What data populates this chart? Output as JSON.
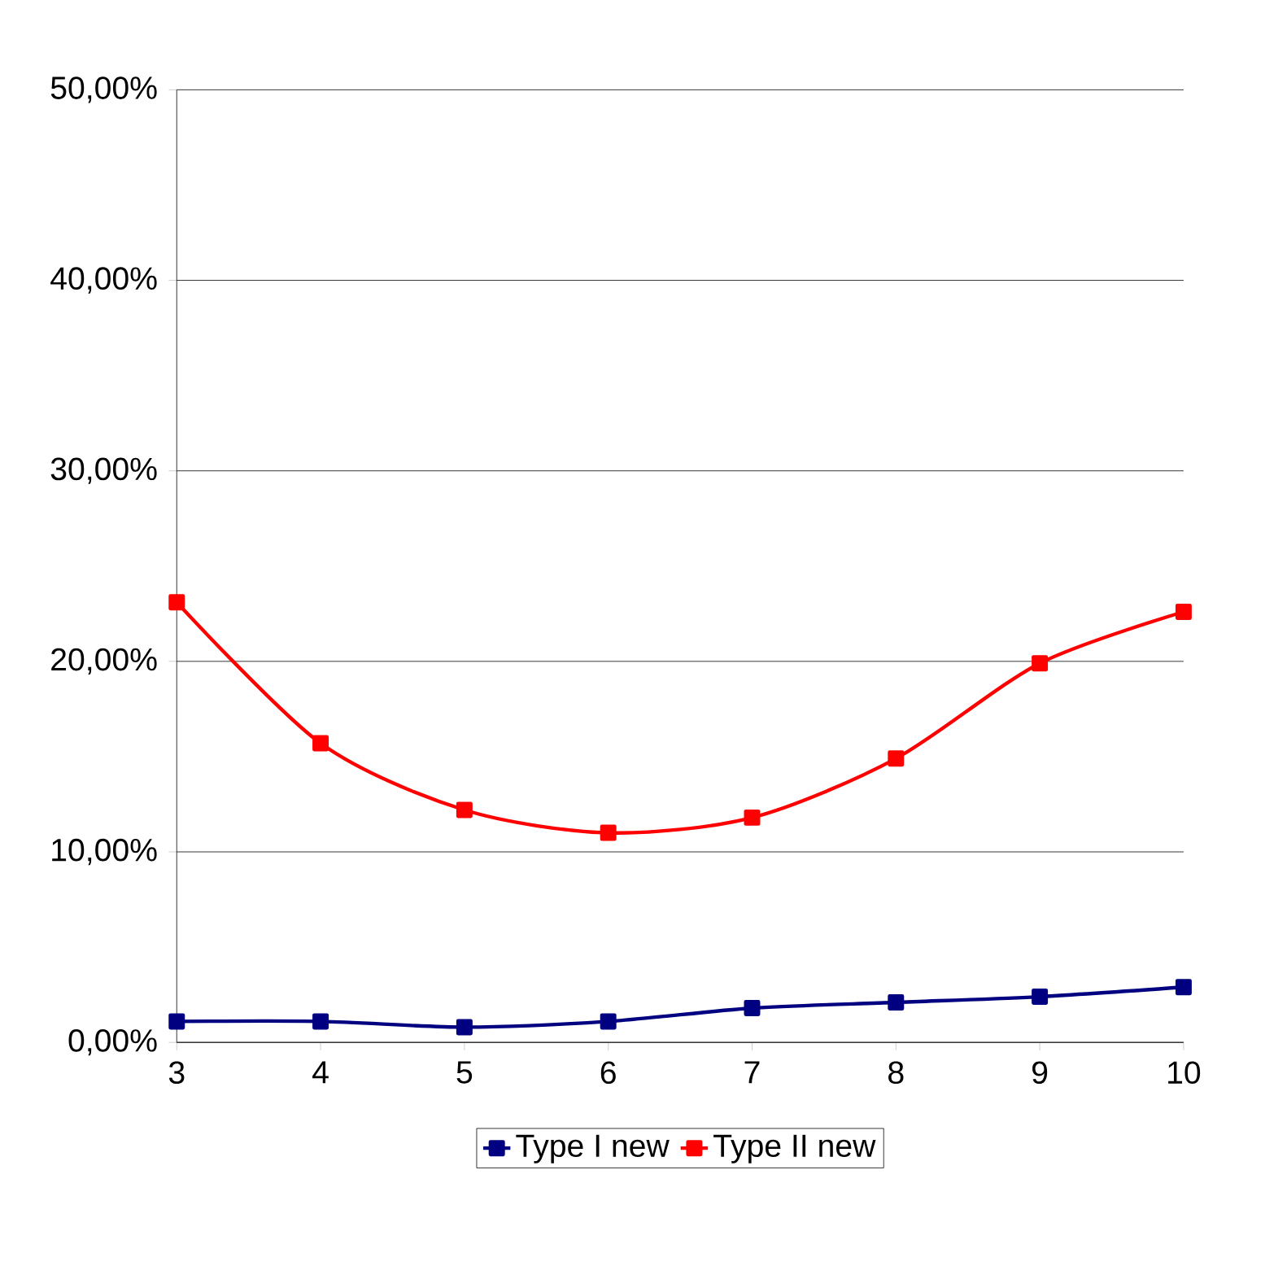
{
  "chart_data": {
    "type": "line",
    "x": [
      3,
      4,
      5,
      6,
      7,
      8,
      9,
      10
    ],
    "series": [
      {
        "name": "Type I new",
        "color": "#000080",
        "values": [
          1.1,
          1.1,
          0.8,
          1.1,
          1.8,
          2.1,
          2.4,
          2.9
        ]
      },
      {
        "name": "Type II new",
        "color": "#ff0000",
        "values": [
          23.1,
          15.7,
          12.2,
          11.0,
          11.8,
          14.9,
          19.9,
          22.6
        ]
      }
    ],
    "xlim": [
      3,
      10
    ],
    "xticks": [
      3,
      4,
      5,
      6,
      7,
      8,
      9,
      10
    ],
    "ylim": [
      0,
      50
    ],
    "yticks": [
      {
        "value": 0,
        "label": "0,00%"
      },
      {
        "value": 10,
        "label": "10,00%"
      },
      {
        "value": 20,
        "label": "20,00%"
      },
      {
        "value": 30,
        "label": "30,00%"
      },
      {
        "value": 40,
        "label": "40,00%"
      },
      {
        "value": 50,
        "label": "50,00%"
      }
    ],
    "grid": "y",
    "legend": "bottom",
    "marker": "square",
    "line_style": "solid"
  }
}
